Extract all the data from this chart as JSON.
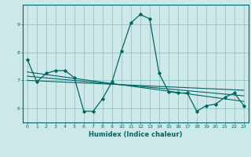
{
  "xlabel": "Humidex (Indice chaleur)",
  "ylabel": "",
  "background_color": "#cce8e8",
  "grid_color": "#99cccc",
  "line_color": "#006666",
  "xlim": [
    -0.5,
    23.5
  ],
  "ylim": [
    5.5,
    9.7
  ],
  "yticks": [
    6,
    7,
    8,
    9
  ],
  "xticks": [
    0,
    1,
    2,
    3,
    4,
    5,
    6,
    7,
    8,
    9,
    10,
    11,
    12,
    13,
    14,
    15,
    16,
    17,
    18,
    19,
    20,
    21,
    22,
    23
  ],
  "main_x": [
    0,
    1,
    2,
    3,
    4,
    5,
    6,
    7,
    8,
    9,
    10,
    11,
    12,
    13,
    14,
    15,
    16,
    17,
    18,
    19,
    20,
    21,
    22,
    23
  ],
  "main_y": [
    7.75,
    6.95,
    7.25,
    7.35,
    7.35,
    7.1,
    5.9,
    5.9,
    6.35,
    6.95,
    8.05,
    9.05,
    9.35,
    9.2,
    7.25,
    6.6,
    6.55,
    6.55,
    5.9,
    6.1,
    6.15,
    6.4,
    6.55,
    6.1
  ],
  "trend1_x": [
    0,
    23
  ],
  "trend1_y": [
    7.3,
    6.25
  ],
  "trend2_x": [
    0,
    23
  ],
  "trend2_y": [
    7.15,
    6.45
  ],
  "trend3_x": [
    0,
    23
  ],
  "trend3_y": [
    7.0,
    6.65
  ]
}
